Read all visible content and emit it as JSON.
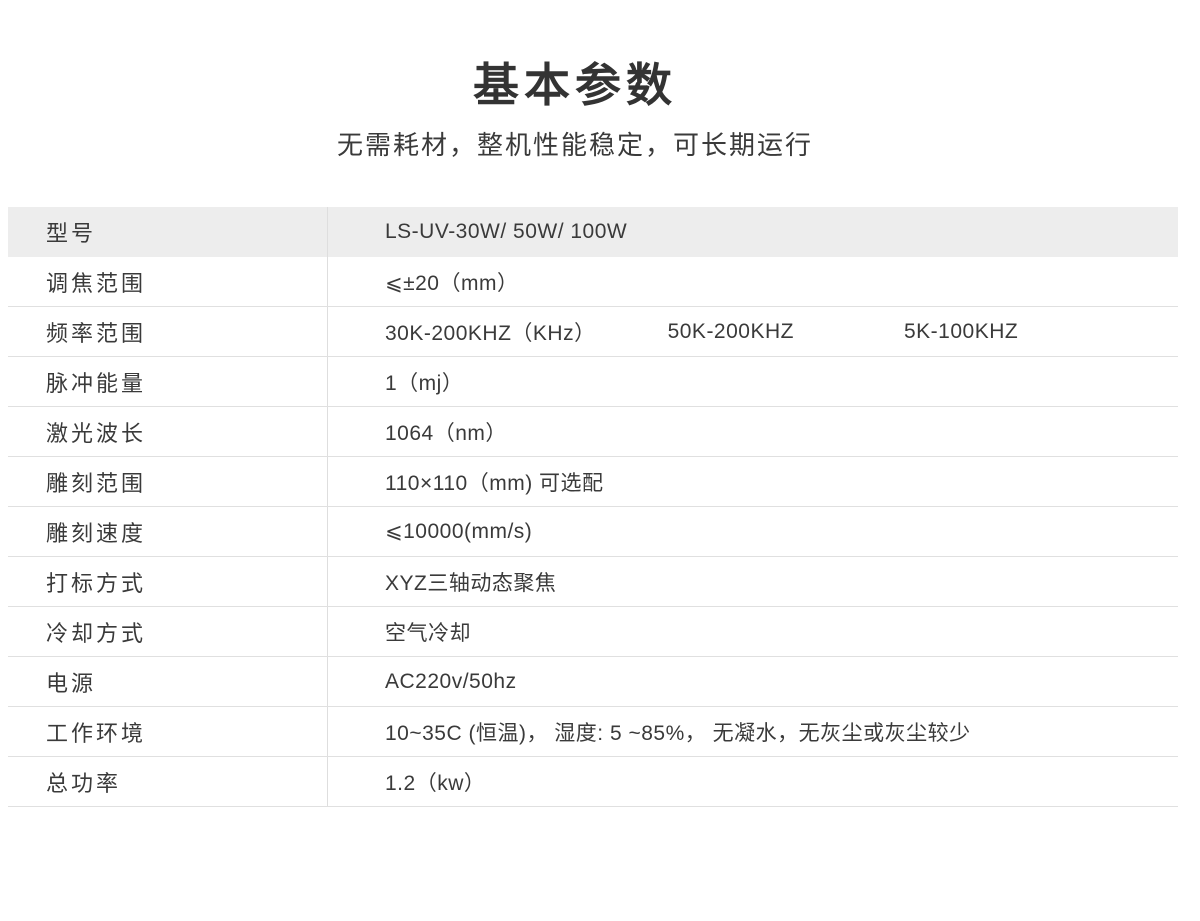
{
  "header": {
    "title": "基本参数",
    "subtitle": "无需耗材，整机性能稳定，可长期运行"
  },
  "table": {
    "rows": [
      {
        "label": "型号",
        "value": "LS-UV-30W/ 50W/ 100W"
      },
      {
        "label": "调焦范围",
        "value": "⩽±20（mm）"
      },
      {
        "label": "频率范围",
        "values": [
          "30K-200KHZ（KHz）",
          "50K-200KHZ",
          "5K-100KHZ"
        ]
      },
      {
        "label": "脉冲能量",
        "value": "1（mj）"
      },
      {
        "label": "激光波长",
        "value": "1064（nm）"
      },
      {
        "label": "雕刻范围",
        "value": "110×110（mm) 可选配"
      },
      {
        "label": "雕刻速度",
        "value": "⩽10000(mm/s)"
      },
      {
        "label": "打标方式",
        "value": "XYZ三轴动态聚焦"
      },
      {
        "label": "冷却方式",
        "value": "空气冷却"
      },
      {
        "label": "电源",
        "value": "AC220v/50hz"
      },
      {
        "label": "工作环境",
        "value": "10~35C (恒温)， 湿度: 5 ~85%， 无凝水，无灰尘或灰尘较少"
      },
      {
        "label": "总功率",
        "value": "1.2（kw）"
      }
    ]
  },
  "colors": {
    "text": "#3a3a3a",
    "title_text": "#333333",
    "header_row_background": "#ededed",
    "row_divider_line": "#e0e0e0",
    "column_divider_line": "#dedede",
    "page_background": "#ffffff"
  }
}
